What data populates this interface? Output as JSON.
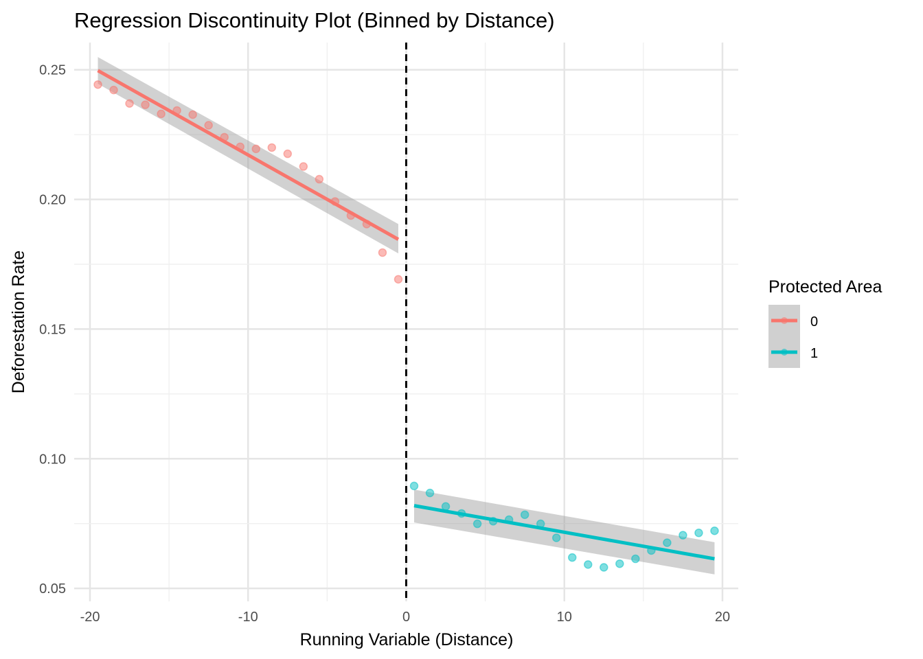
{
  "chart_data": {
    "type": "scatter",
    "title": "Regression Discontinuity Plot (Binned by Distance)",
    "xlabel": "Running Variable (Distance)",
    "ylabel": "Deforestation Rate",
    "xlim": [
      -21.0,
      21.0
    ],
    "ylim": [
      0.045,
      0.2605
    ],
    "xticks": [
      -20,
      -10,
      0,
      10,
      20
    ],
    "xtick_labels": [
      "-20",
      "-10",
      "0",
      "10",
      "20"
    ],
    "yticks": [
      0.05,
      0.1,
      0.15,
      0.2,
      0.25
    ],
    "ytick_labels": [
      "0.05",
      "0.10",
      "0.15",
      "0.20",
      "0.25"
    ],
    "grid": true,
    "cutoff": 0,
    "cutoff_style": "dashed",
    "legend": {
      "title": "Protected Area",
      "position": "right",
      "entries": [
        "0",
        "1"
      ]
    },
    "series": [
      {
        "name": "0",
        "color": "#F8766D",
        "points": {
          "x": [
            -19.5,
            -18.5,
            -17.5,
            -16.5,
            -15.5,
            -14.5,
            -13.5,
            -12.5,
            -11.5,
            -10.5,
            -9.5,
            -8.5,
            -7.5,
            -6.5,
            -5.5,
            -4.5,
            -3.5,
            -2.5,
            -1.5,
            -0.5
          ],
          "y": [
            0.2443,
            0.2422,
            0.237,
            0.2365,
            0.233,
            0.2343,
            0.2327,
            0.2286,
            0.224,
            0.2203,
            0.2195,
            0.22,
            0.2176,
            0.2127,
            0.2078,
            0.1992,
            0.1938,
            0.1905,
            0.1795,
            0.1692
          ]
        },
        "fit": {
          "x": [
            -19.5,
            -0.5
          ],
          "y": [
            0.2497,
            0.1846
          ],
          "ci_lower": [
            0.2446,
            0.1792
          ],
          "ci_upper": [
            0.2549,
            0.1905
          ]
        }
      },
      {
        "name": "1",
        "color": "#00BFC4",
        "points": {
          "x": [
            0.5,
            1.5,
            2.5,
            3.5,
            4.5,
            5.5,
            6.5,
            7.5,
            8.5,
            9.5,
            10.5,
            11.5,
            12.5,
            13.5,
            14.5,
            15.5,
            16.5,
            17.5,
            18.5,
            19.5
          ],
          "y": [
            0.0895,
            0.0868,
            0.0816,
            0.0789,
            0.0749,
            0.0759,
            0.0765,
            0.0784,
            0.0749,
            0.0695,
            0.0619,
            0.0592,
            0.0581,
            0.0595,
            0.0614,
            0.0646,
            0.0676,
            0.0705,
            0.0714,
            0.0722
          ]
        },
        "fit": {
          "x": [
            0.5,
            19.5
          ],
          "y": [
            0.0819,
            0.0614
          ],
          "ci_lower": [
            0.0754,
            0.0554
          ],
          "ci_upper": [
            0.0881,
            0.0678
          ]
        }
      }
    ]
  }
}
